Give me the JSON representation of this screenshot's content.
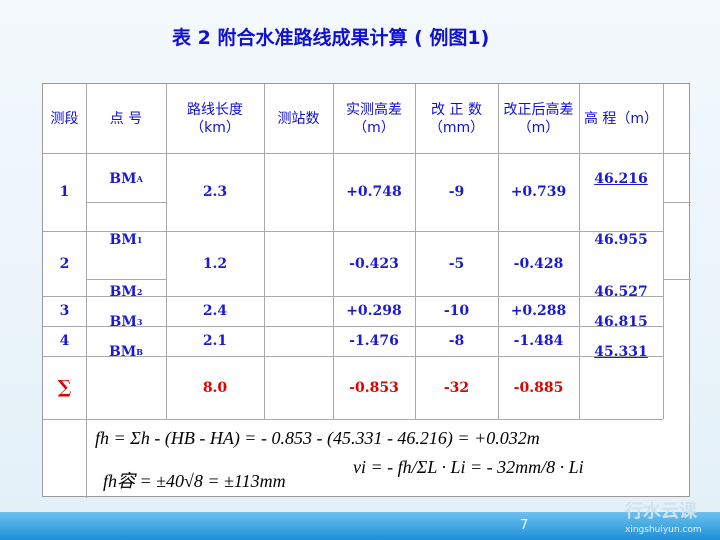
{
  "title": "表 2 附合水准路线成果计算 ( 例图1)",
  "table": {
    "headers": [
      "测段",
      "点 号",
      "路线长度（km）",
      "测站数",
      "实测高差（m）",
      "改 正 数（mm）",
      "改正后高差（m）",
      "高 程（m）"
    ],
    "segments": [
      {
        "id": "1",
        "length": "2.3",
        "measured": "+0.748",
        "correction": "-9",
        "corrected": "+0.739"
      },
      {
        "id": "2",
        "length": "1.2",
        "measured": "-0.423",
        "correction": "-5",
        "corrected": "-0.428"
      },
      {
        "id": "3",
        "length": "2.4",
        "measured": "+0.298",
        "correction": "-10",
        "corrected": "+0.288"
      },
      {
        "id": "4",
        "length": "2.1",
        "measured": "-1.476",
        "correction": "-8",
        "corrected": "-1.484"
      }
    ],
    "points": [
      {
        "name": "BM",
        "sub": "A",
        "elevation": "46.216"
      },
      {
        "name": "BM",
        "sub": "1",
        "elevation": "46.955"
      },
      {
        "name": "BM",
        "sub": "2",
        "elevation": "46.527"
      },
      {
        "name": "BM",
        "sub": "3",
        "elevation": "46.815"
      },
      {
        "name": "BM",
        "sub": "B",
        "elevation": "45.331"
      }
    ],
    "total": {
      "symbol": "∑",
      "length": "8.0",
      "measured": "-0.853",
      "correction": "-32",
      "corrected": "-0.885"
    },
    "formulas": [
      "fh = Σh - (HB - HA) = - 0.853 - (45.331 - 46.216) = +0.032m",
      "fh容 = ±40√8 = ±113mm",
      "νi = - fh/ΣL · Li = - 32mm/8 · Li"
    ]
  },
  "page_number": "7",
  "watermark": {
    "cn": "行水云课",
    "url": "xingshuiyun.com"
  }
}
